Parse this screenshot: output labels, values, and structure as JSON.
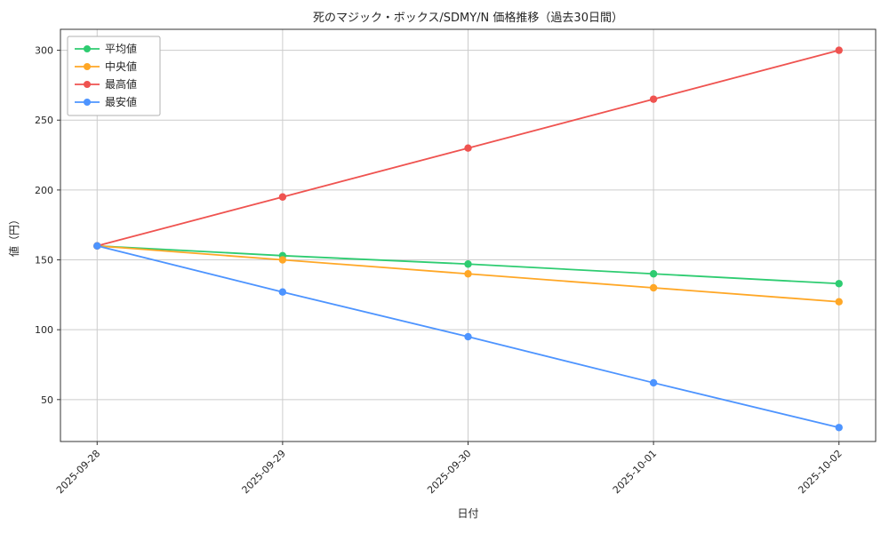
{
  "chart_data": {
    "type": "line",
    "title": "死のマジック・ボックス/SDMY/N 価格推移（過去30日間）",
    "xlabel": "日付",
    "ylabel": "値（円）",
    "x": [
      "2025-09-28",
      "2025-09-29",
      "2025-09-30",
      "2025-10-01",
      "2025-10-02"
    ],
    "yticks": [
      50,
      100,
      150,
      200,
      250,
      300
    ],
    "ylim": [
      20,
      315
    ],
    "grid": true,
    "legend_position": "upper left",
    "series": [
      {
        "name": "平均値",
        "color": "#2ecc71",
        "values": [
          160,
          153,
          147,
          140,
          133
        ]
      },
      {
        "name": "中央値",
        "color": "#ffa726",
        "values": [
          160,
          150,
          140,
          130,
          120
        ]
      },
      {
        "name": "最高値",
        "color": "#ef5350",
        "values": [
          160,
          195,
          230,
          265,
          300
        ]
      },
      {
        "name": "最安値",
        "color": "#4d94ff",
        "values": [
          160,
          127,
          95,
          62,
          30
        ]
      }
    ],
    "colors": {
      "grid": "#cccccc",
      "spine": "#333333",
      "tick_label": "#262626",
      "legend_border": "#b0b0b0",
      "legend_bg": "#ffffff"
    }
  }
}
